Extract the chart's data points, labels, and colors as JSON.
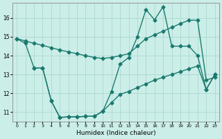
{
  "xlabel": "Humidex (Indice chaleur)",
  "bg_color": "#cceee8",
  "line_color": "#1a7a6e",
  "grid_color": "#aad8d0",
  "xlim": [
    -0.5,
    23.5
  ],
  "ylim": [
    10.5,
    16.8
  ],
  "yticks": [
    11,
    12,
    13,
    14,
    15,
    16
  ],
  "xticks": [
    0,
    1,
    2,
    3,
    4,
    5,
    6,
    7,
    8,
    9,
    10,
    11,
    12,
    13,
    14,
    15,
    16,
    17,
    18,
    19,
    20,
    21,
    22,
    23
  ],
  "line1_x": [
    0,
    1,
    2,
    3,
    4,
    5,
    6,
    7,
    8,
    9,
    10,
    11,
    12,
    13,
    14,
    15,
    16,
    17,
    18,
    19,
    20,
    21,
    22,
    23
  ],
  "line1_y": [
    14.9,
    14.65,
    13.35,
    13.35,
    11.6,
    10.72,
    10.75,
    10.75,
    10.78,
    10.78,
    11.05,
    12.1,
    13.55,
    13.9,
    15.0,
    16.45,
    15.9,
    16.6,
    14.5,
    14.5,
    14.5,
    14.0,
    12.2,
    13.0
  ],
  "line2_x": [
    0,
    1,
    2,
    3,
    4,
    5,
    6,
    7,
    8,
    9,
    10,
    11,
    12,
    13,
    14,
    15,
    16,
    17,
    18,
    19,
    20,
    21,
    22,
    23
  ],
  "line2_y": [
    14.9,
    14.78,
    14.65,
    14.55,
    14.42,
    14.3,
    14.2,
    14.1,
    14.0,
    13.9,
    13.85,
    13.9,
    14.0,
    14.1,
    14.5,
    14.9,
    15.1,
    15.3,
    15.5,
    15.7,
    15.88,
    15.88,
    12.7,
    12.85
  ],
  "line3_x": [
    2,
    3,
    4,
    5,
    6,
    7,
    8,
    9,
    10,
    11,
    12,
    13,
    14,
    15,
    16,
    17,
    18,
    19,
    20,
    21,
    22,
    23
  ],
  "line3_y": [
    13.35,
    13.35,
    11.6,
    10.72,
    10.75,
    10.75,
    10.78,
    10.78,
    11.05,
    11.5,
    11.95,
    12.1,
    12.3,
    12.5,
    12.7,
    12.85,
    13.0,
    13.15,
    13.3,
    13.45,
    12.2,
    13.0
  ]
}
